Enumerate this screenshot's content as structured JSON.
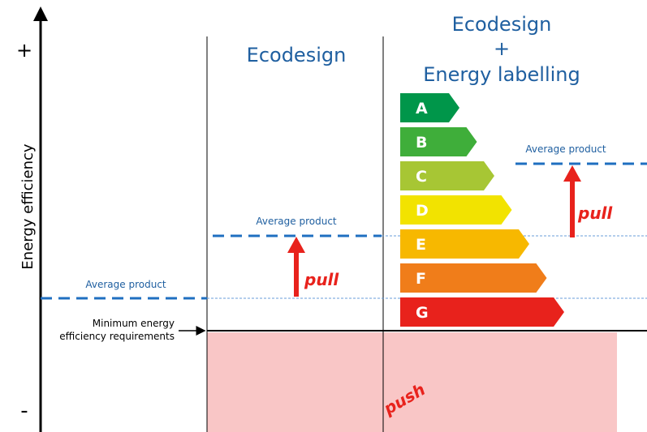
{
  "axis": {
    "plus": "+",
    "minus": "-",
    "label": "Energy efficiency"
  },
  "ecodesign": {
    "title": "Ecodesign",
    "average": "Average product",
    "pull": "pull"
  },
  "labelling": {
    "title": [
      "Ecodesign",
      "+",
      "Energy labelling"
    ],
    "average": "Average product",
    "pull": "pull",
    "classes": [
      "A",
      "B",
      "C",
      "D",
      "E",
      "F",
      "G"
    ]
  },
  "baseline": {
    "average": "Average product"
  },
  "minimum": [
    "Minimum energy",
    "efficiency requirements"
  ],
  "push": "push"
}
